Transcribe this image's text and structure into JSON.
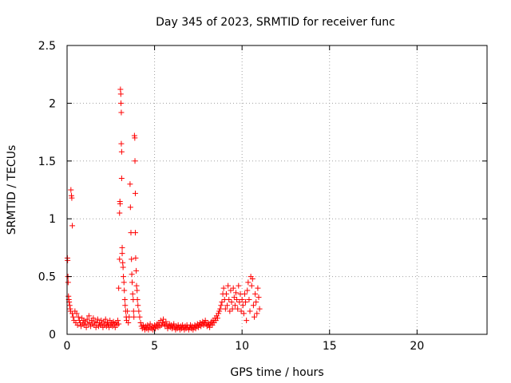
{
  "chart_data": {
    "type": "scatter",
    "title": "Day 345 of 2023, SRMTID for receiver func",
    "xlabel": "GPS time / hours",
    "ylabel": "SRMTID / TECUs",
    "xlim": [
      0,
      24
    ],
    "ylim": [
      0,
      2.5
    ],
    "xticks": [
      0,
      5,
      10,
      15,
      20
    ],
    "xtick_labels": [
      "0",
      "5",
      "10",
      "15",
      "20"
    ],
    "yticks": [
      0,
      0.5,
      1,
      1.5,
      2,
      2.5
    ],
    "ytick_labels": [
      "0",
      "0.5",
      "1",
      "1.5",
      "2",
      "2.5"
    ],
    "grid": true,
    "marker": "+",
    "marker_color": "#ff0000",
    "series": [
      {
        "name": "SRMTID",
        "points": [
          [
            0.02,
            0.66
          ],
          [
            0.03,
            0.64
          ],
          [
            0.05,
            0.5
          ],
          [
            0.06,
            0.45
          ],
          [
            0.08,
            0.33
          ],
          [
            0.1,
            0.3
          ],
          [
            0.12,
            0.28
          ],
          [
            0.15,
            0.25
          ],
          [
            0.18,
            0.22
          ],
          [
            0.2,
            0.2
          ],
          [
            0.22,
            1.25
          ],
          [
            0.25,
            1.2
          ],
          [
            0.27,
            1.18
          ],
          [
            0.3,
            0.94
          ],
          [
            0.3,
            0.18
          ],
          [
            0.35,
            0.15
          ],
          [
            0.4,
            0.12
          ],
          [
            0.45,
            0.2
          ],
          [
            0.5,
            0.1
          ],
          [
            0.55,
            0.18
          ],
          [
            0.6,
            0.08
          ],
          [
            0.65,
            0.15
          ],
          [
            0.7,
            0.12
          ],
          [
            0.75,
            0.1
          ],
          [
            0.8,
            0.07
          ],
          [
            0.85,
            0.14
          ],
          [
            0.9,
            0.09
          ],
          [
            0.95,
            0.12
          ],
          [
            1.0,
            0.08
          ],
          [
            1.05,
            0.11
          ],
          [
            1.1,
            0.06
          ],
          [
            1.15,
            0.13
          ],
          [
            1.2,
            0.09
          ],
          [
            1.25,
            0.16
          ],
          [
            1.3,
            0.1
          ],
          [
            1.35,
            0.07
          ],
          [
            1.4,
            0.12
          ],
          [
            1.45,
            0.09
          ],
          [
            1.5,
            0.14
          ],
          [
            1.55,
            0.08
          ],
          [
            1.6,
            0.11
          ],
          [
            1.65,
            0.06
          ],
          [
            1.7,
            0.1
          ],
          [
            1.75,
            0.13
          ],
          [
            1.8,
            0.07
          ],
          [
            1.85,
            0.1
          ],
          [
            1.9,
            0.08
          ],
          [
            1.95,
            0.12
          ],
          [
            2.0,
            0.09
          ],
          [
            2.05,
            0.06
          ],
          [
            2.1,
            0.11
          ],
          [
            2.15,
            0.08
          ],
          [
            2.2,
            0.13
          ],
          [
            2.25,
            0.07
          ],
          [
            2.3,
            0.1
          ],
          [
            2.35,
            0.09
          ],
          [
            2.4,
            0.06
          ],
          [
            2.45,
            0.12
          ],
          [
            2.5,
            0.08
          ],
          [
            2.55,
            0.1
          ],
          [
            2.6,
            0.07
          ],
          [
            2.65,
            0.11
          ],
          [
            2.7,
            0.09
          ],
          [
            2.75,
            0.06
          ],
          [
            2.8,
            0.1
          ],
          [
            2.85,
            0.08
          ],
          [
            2.9,
            0.12
          ],
          [
            2.95,
            0.09
          ],
          [
            2.95,
            0.4
          ],
          [
            3.0,
            0.65
          ],
          [
            3.0,
            1.05
          ],
          [
            3.02,
            1.15
          ],
          [
            3.03,
            1.13
          ],
          [
            3.05,
            2.12
          ],
          [
            3.07,
            2.08
          ],
          [
            3.08,
            2.0
          ],
          [
            3.1,
            1.92
          ],
          [
            3.1,
            1.65
          ],
          [
            3.12,
            1.58
          ],
          [
            3.12,
            1.35
          ],
          [
            3.15,
            0.75
          ],
          [
            3.15,
            0.7
          ],
          [
            3.18,
            0.62
          ],
          [
            3.2,
            0.58
          ],
          [
            3.22,
            0.5
          ],
          [
            3.25,
            0.45
          ],
          [
            3.27,
            0.38
          ],
          [
            3.3,
            0.3
          ],
          [
            3.32,
            0.25
          ],
          [
            3.35,
            0.2
          ],
          [
            3.38,
            0.15
          ],
          [
            3.4,
            0.12
          ],
          [
            3.45,
            0.2
          ],
          [
            3.5,
            0.1
          ],
          [
            3.55,
            0.15
          ],
          [
            3.6,
            1.3
          ],
          [
            3.62,
            1.1
          ],
          [
            3.65,
            0.88
          ],
          [
            3.68,
            0.65
          ],
          [
            3.7,
            0.52
          ],
          [
            3.72,
            0.45
          ],
          [
            3.75,
            0.35
          ],
          [
            3.78,
            0.3
          ],
          [
            3.8,
            0.2
          ],
          [
            3.82,
            0.15
          ],
          [
            3.85,
            1.72
          ],
          [
            3.87,
            1.7
          ],
          [
            3.88,
            1.5
          ],
          [
            3.9,
            1.22
          ],
          [
            3.9,
            0.88
          ],
          [
            3.92,
            0.66
          ],
          [
            3.95,
            0.55
          ],
          [
            3.97,
            0.42
          ],
          [
            4.0,
            0.38
          ],
          [
            4.02,
            0.3
          ],
          [
            4.05,
            0.25
          ],
          [
            4.1,
            0.2
          ],
          [
            4.15,
            0.15
          ],
          [
            4.2,
            0.1
          ],
          [
            4.25,
            0.07
          ],
          [
            4.3,
            0.05
          ],
          [
            4.35,
            0.08
          ],
          [
            4.4,
            0.06
          ],
          [
            4.45,
            0.04
          ],
          [
            4.5,
            0.07
          ],
          [
            4.55,
            0.05
          ],
          [
            4.6,
            0.08
          ],
          [
            4.65,
            0.04
          ],
          [
            4.7,
            0.06
          ],
          [
            4.75,
            0.09
          ],
          [
            4.8,
            0.05
          ],
          [
            4.85,
            0.07
          ],
          [
            4.9,
            0.04
          ],
          [
            4.95,
            0.06
          ],
          [
            5.0,
            0.08
          ],
          [
            5.05,
            0.05
          ],
          [
            5.1,
            0.07
          ],
          [
            5.15,
            0.09
          ],
          [
            5.2,
            0.06
          ],
          [
            5.25,
            0.1
          ],
          [
            5.3,
            0.07
          ],
          [
            5.35,
            0.12
          ],
          [
            5.4,
            0.08
          ],
          [
            5.45,
            0.1
          ],
          [
            5.5,
            0.13
          ],
          [
            5.55,
            0.09
          ],
          [
            5.6,
            0.07
          ],
          [
            5.65,
            0.11
          ],
          [
            5.7,
            0.08
          ],
          [
            5.75,
            0.05
          ],
          [
            5.8,
            0.07
          ],
          [
            5.85,
            0.09
          ],
          [
            5.9,
            0.06
          ],
          [
            5.95,
            0.08
          ],
          [
            6.0,
            0.05
          ],
          [
            6.05,
            0.07
          ],
          [
            6.1,
            0.09
          ],
          [
            6.15,
            0.06
          ],
          [
            6.2,
            0.04
          ],
          [
            6.25,
            0.07
          ],
          [
            6.3,
            0.05
          ],
          [
            6.35,
            0.08
          ],
          [
            6.4,
            0.06
          ],
          [
            6.45,
            0.04
          ],
          [
            6.5,
            0.07
          ],
          [
            6.55,
            0.05
          ],
          [
            6.6,
            0.08
          ],
          [
            6.65,
            0.06
          ],
          [
            6.7,
            0.04
          ],
          [
            6.75,
            0.07
          ],
          [
            6.8,
            0.05
          ],
          [
            6.85,
            0.08
          ],
          [
            6.9,
            0.06
          ],
          [
            6.95,
            0.04
          ],
          [
            7.0,
            0.06
          ],
          [
            7.05,
            0.08
          ],
          [
            7.1,
            0.05
          ],
          [
            7.15,
            0.07
          ],
          [
            7.2,
            0.04
          ],
          [
            7.25,
            0.06
          ],
          [
            7.3,
            0.08
          ],
          [
            7.35,
            0.05
          ],
          [
            7.4,
            0.07
          ],
          [
            7.45,
            0.09
          ],
          [
            7.5,
            0.06
          ],
          [
            7.55,
            0.08
          ],
          [
            7.6,
            0.1
          ],
          [
            7.65,
            0.07
          ],
          [
            7.7,
            0.09
          ],
          [
            7.75,
            0.11
          ],
          [
            7.8,
            0.08
          ],
          [
            7.85,
            0.1
          ],
          [
            7.9,
            0.12
          ],
          [
            7.95,
            0.09
          ],
          [
            8.0,
            0.07
          ],
          [
            8.05,
            0.1
          ],
          [
            8.1,
            0.08
          ],
          [
            8.15,
            0.06
          ],
          [
            8.2,
            0.09
          ],
          [
            8.25,
            0.11
          ],
          [
            8.3,
            0.08
          ],
          [
            8.35,
            0.12
          ],
          [
            8.4,
            0.1
          ],
          [
            8.45,
            0.14
          ],
          [
            8.5,
            0.12
          ],
          [
            8.55,
            0.16
          ],
          [
            8.6,
            0.14
          ],
          [
            8.65,
            0.18
          ],
          [
            8.7,
            0.2
          ],
          [
            8.75,
            0.22
          ],
          [
            8.8,
            0.25
          ],
          [
            8.85,
            0.28
          ],
          [
            8.9,
            0.35
          ],
          [
            8.95,
            0.4
          ],
          [
            9.0,
            0.3
          ],
          [
            9.05,
            0.22
          ],
          [
            9.1,
            0.35
          ],
          [
            9.15,
            0.25
          ],
          [
            9.2,
            0.42
          ],
          [
            9.25,
            0.3
          ],
          [
            9.3,
            0.2
          ],
          [
            9.35,
            0.38
          ],
          [
            9.4,
            0.28
          ],
          [
            9.45,
            0.22
          ],
          [
            9.5,
            0.4
          ],
          [
            9.55,
            0.32
          ],
          [
            9.6,
            0.25
          ],
          [
            9.65,
            0.36
          ],
          [
            9.7,
            0.3
          ],
          [
            9.75,
            0.22
          ],
          [
            9.8,
            0.42
          ],
          [
            9.85,
            0.28
          ],
          [
            9.9,
            0.35
          ],
          [
            9.95,
            0.2
          ],
          [
            10.0,
            0.3
          ],
          [
            10.05,
            0.25
          ],
          [
            10.1,
            0.18
          ],
          [
            10.15,
            0.35
          ],
          [
            10.2,
            0.28
          ],
          [
            10.25,
            0.12
          ],
          [
            10.3,
            0.38
          ],
          [
            10.35,
            0.45
          ],
          [
            10.4,
            0.3
          ],
          [
            10.45,
            0.2
          ],
          [
            10.5,
            0.5
          ],
          [
            10.55,
            0.42
          ],
          [
            10.6,
            0.48
          ],
          [
            10.65,
            0.25
          ],
          [
            10.7,
            0.15
          ],
          [
            10.75,
            0.35
          ],
          [
            10.8,
            0.28
          ],
          [
            10.85,
            0.18
          ],
          [
            10.9,
            0.4
          ],
          [
            10.95,
            0.32
          ],
          [
            11.0,
            0.22
          ]
        ]
      }
    ]
  }
}
